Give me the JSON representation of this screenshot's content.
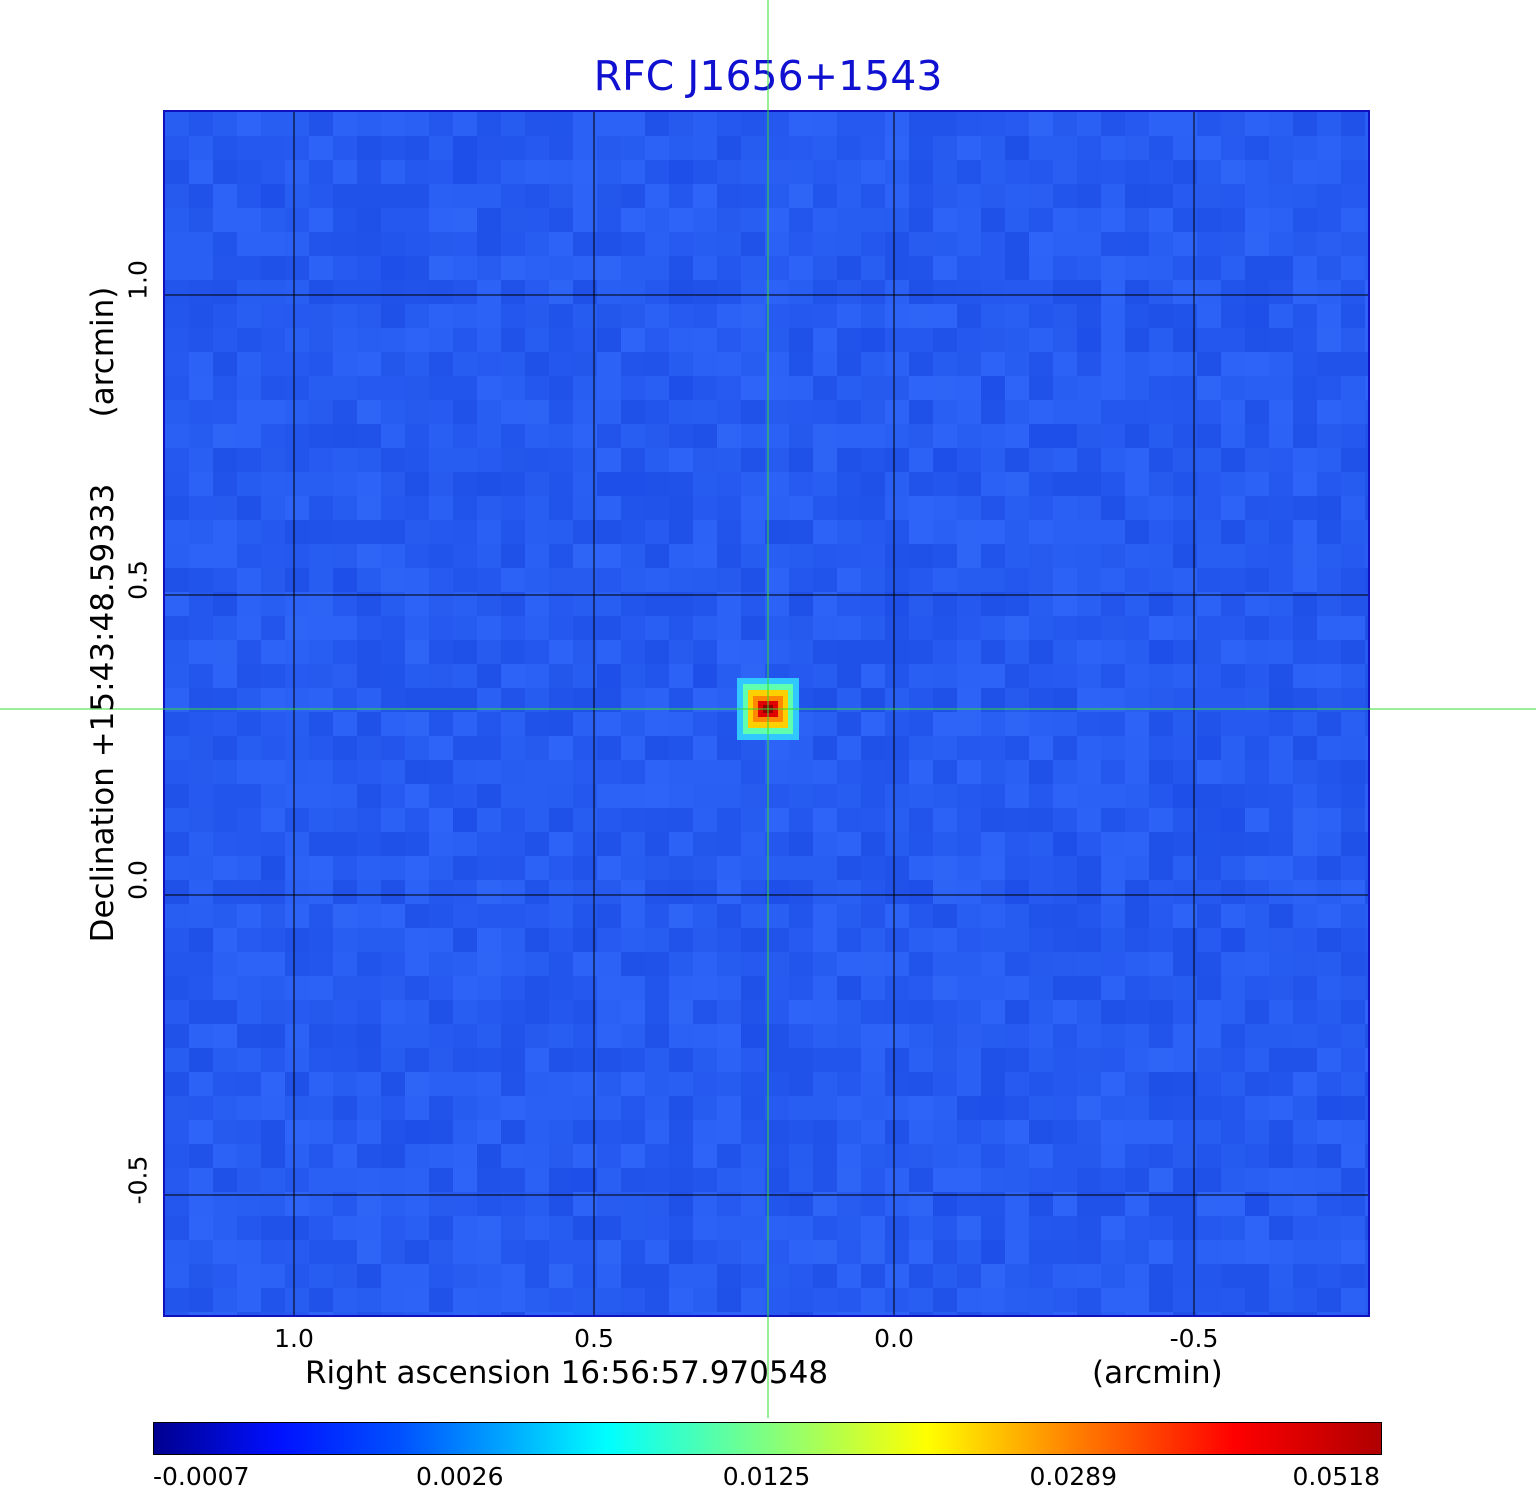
{
  "chart_data": {
    "type": "heatmap",
    "title": "RFC J1656+1543",
    "xlabel": "Right ascension  16:56:57.970548",
    "xunit": "(arcmin)",
    "ylabel": "Declination  +15:43:48.59333",
    "yunit": "(arcmin)",
    "x_ticks": [
      "1.0",
      "0.5",
      "0.0",
      "-0.5"
    ],
    "y_ticks": [
      "1.0",
      "0.5",
      "0.0",
      "-0.5"
    ],
    "x_tick_values": [
      1.0,
      0.5,
      0.0,
      -0.5
    ],
    "y_tick_values": [
      1.0,
      0.5,
      0.0,
      -0.5
    ],
    "xlim": [
      1.215,
      -0.79
    ],
    "ylim": [
      -0.7,
      1.305
    ],
    "grid": true,
    "source_peak": {
      "x": 0.21,
      "y": 0.31,
      "value": 0.0518
    },
    "colorbar": {
      "ticks": [
        "-0.0007",
        "0.0026",
        "0.0125",
        "0.0289",
        "0.0518"
      ],
      "colormap": "jet"
    },
    "colors": {
      "background": "#2a5cf0",
      "grid": "#000000",
      "crosshair": "#33dd33",
      "title": "#1010d0"
    }
  }
}
